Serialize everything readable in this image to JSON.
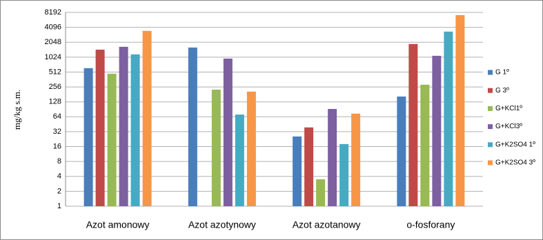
{
  "chart_data": {
    "type": "bar",
    "y_label": "mg/kg s.m.",
    "categories": [
      "Azot amonowy",
      "Azot azotynowy",
      "Azot azotanowy",
      "o-fosforany"
    ],
    "series": [
      {
        "name": "G 1º",
        "color": "#4a7ebb",
        "values": [
          613,
          1600,
          25.6,
          164
        ]
      },
      {
        "name": "G 3º",
        "color": "#be4b48",
        "values": [
          1450,
          null,
          39,
          1885
        ]
      },
      {
        "name": "G+KCl1º",
        "color": "#98b954",
        "values": [
          474,
          226,
          3.5,
          284
        ]
      },
      {
        "name": "G+KCl3º",
        "color": "#7d60a0",
        "values": [
          1655,
          958,
          92,
          1090
        ]
      },
      {
        "name": "G+K2SO4 1º",
        "color": "#46aac5",
        "values": [
          1165,
          71,
          18,
          3360
        ]
      },
      {
        "name": "G+K2SO4 3º",
        "color": "#f79646",
        "values": [
          3470,
          206,
          74,
          7240
        ]
      }
    ],
    "log_scale": true,
    "log_base": 2,
    "ylim": [
      1,
      8192
    ],
    "yticks": [
      1,
      2,
      4,
      8,
      16,
      32,
      64,
      128,
      256,
      512,
      1024,
      2048,
      4096,
      8192
    ],
    "grid": true,
    "legend": "right"
  }
}
